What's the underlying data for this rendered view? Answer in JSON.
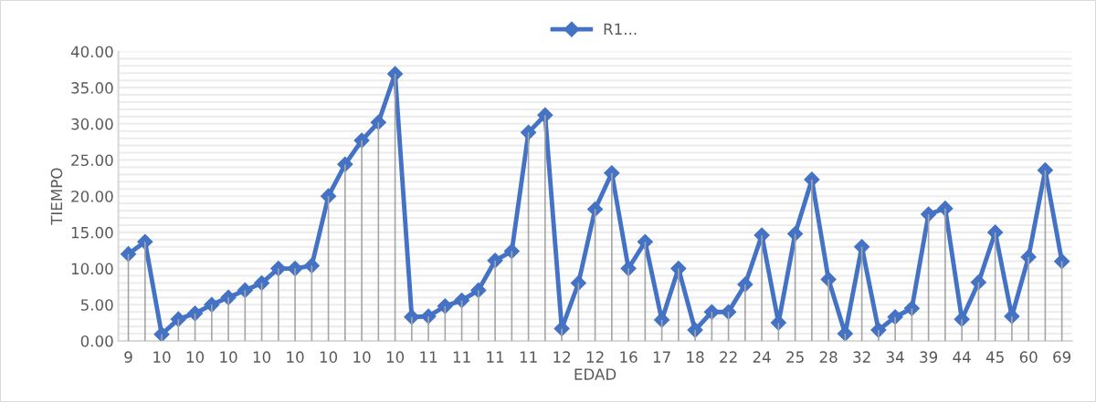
{
  "chart_data": {
    "type": "line",
    "xlabel": "EDAD",
    "ylabel": "TIEMPO",
    "categories": [
      "9",
      null,
      "10",
      null,
      "10",
      null,
      "10",
      null,
      "10",
      null,
      "10",
      null,
      "10",
      null,
      "10",
      null,
      "10",
      null,
      "11",
      null,
      "11",
      null,
      "11",
      null,
      "11",
      null,
      "12",
      null,
      "12",
      null,
      "16",
      null,
      "17",
      null,
      "18",
      null,
      "22",
      null,
      "24",
      null,
      "25",
      null,
      "28",
      null,
      "32",
      null,
      "34",
      null,
      "39",
      null,
      "44",
      null,
      "45",
      null,
      "60",
      null,
      "69"
    ],
    "series": [
      {
        "type": "bar",
        "color": "#a6a6a6",
        "values": [
          12.0,
          13.7,
          0.9,
          3.0,
          3.8,
          5.0,
          6.0,
          7.0,
          8.0,
          10.0,
          10.0,
          10.4,
          20.0,
          24.4,
          27.7,
          30.2,
          36.9,
          3.3,
          3.4,
          4.8,
          5.6,
          7.0,
          11.1,
          12.4,
          28.8,
          31.2,
          1.7,
          8.0,
          18.2,
          23.2,
          10.0,
          13.7,
          2.9,
          10.0,
          1.5,
          4.0,
          4.0,
          7.8,
          14.6,
          2.5,
          14.8,
          22.3,
          8.5,
          1.0,
          13.0,
          1.5,
          3.3,
          4.5,
          17.5,
          18.3,
          3.0,
          8.1,
          15.0,
          3.4,
          11.6,
          23.6,
          11.0
        ]
      },
      {
        "name": "R1...",
        "color": "#4472c4",
        "values": [
          12.0,
          13.7,
          0.9,
          3.0,
          3.8,
          5.0,
          6.0,
          7.0,
          8.0,
          10.0,
          10.0,
          10.4,
          20.0,
          24.4,
          27.7,
          30.2,
          36.9,
          3.3,
          3.4,
          4.8,
          5.6,
          7.0,
          11.1,
          12.4,
          28.8,
          31.2,
          1.7,
          8.0,
          18.2,
          23.2,
          10.0,
          13.7,
          2.9,
          10.0,
          1.5,
          4.0,
          4.0,
          7.8,
          14.6,
          2.5,
          14.8,
          22.3,
          8.5,
          1.0,
          13.0,
          1.5,
          3.3,
          4.5,
          17.5,
          18.3,
          3.0,
          8.1,
          15.0,
          3.4,
          11.6,
          23.6,
          11.0
        ]
      }
    ],
    "ylim": [
      0,
      40
    ],
    "yticks": [
      {
        "value": 0,
        "label": "0.00"
      },
      {
        "value": 1,
        "label": null
      },
      {
        "value": 2,
        "label": null
      },
      {
        "value": 3,
        "label": null
      },
      {
        "value": 4,
        "label": null
      },
      {
        "value": 5,
        "label": "5.00"
      },
      {
        "value": 6,
        "label": null
      },
      {
        "value": 7,
        "label": null
      },
      {
        "value": 8,
        "label": null
      },
      {
        "value": 9,
        "label": null
      },
      {
        "value": 10,
        "label": "10.00"
      },
      {
        "value": 11,
        "label": null
      },
      {
        "value": 12,
        "label": null
      },
      {
        "value": 13,
        "label": null
      },
      {
        "value": 14,
        "label": null
      },
      {
        "value": 15,
        "label": "15.00"
      },
      {
        "value": 16,
        "label": null
      },
      {
        "value": 17,
        "label": null
      },
      {
        "value": 18,
        "label": null
      },
      {
        "value": 19,
        "label": null
      },
      {
        "value": 20,
        "label": "20.00"
      },
      {
        "value": 21,
        "label": null
      },
      {
        "value": 22,
        "label": null
      },
      {
        "value": 23,
        "label": null
      },
      {
        "value": 24,
        "label": null
      },
      {
        "value": 25,
        "label": "25.00"
      },
      {
        "value": 26,
        "label": null
      },
      {
        "value": 27,
        "label": null
      },
      {
        "value": 28,
        "label": null
      },
      {
        "value": 29,
        "label": null
      },
      {
        "value": 30,
        "label": "30.00"
      },
      {
        "value": 31,
        "label": null
      },
      {
        "value": 32,
        "label": null
      },
      {
        "value": 33,
        "label": null
      },
      {
        "value": 34,
        "label": null
      },
      {
        "value": 35,
        "label": "35.00"
      },
      {
        "value": 36,
        "label": null
      },
      {
        "value": 37,
        "label": null
      },
      {
        "value": 38,
        "label": null
      },
      {
        "value": 39,
        "label": null
      },
      {
        "value": 40,
        "label": "40.00"
      }
    ],
    "grid": "y",
    "legend": "top",
    "marker": "diamond",
    "line_style": "solid"
  }
}
